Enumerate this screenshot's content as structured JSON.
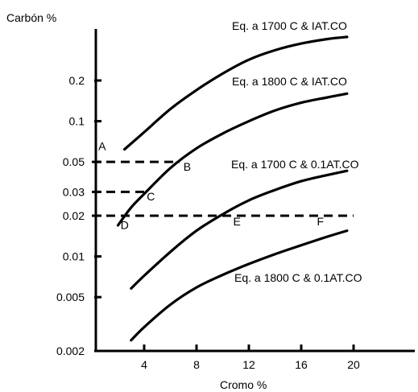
{
  "chart_data": {
    "type": "line",
    "xlabel": "Cromo %",
    "ylabel": "Carbón %",
    "x_ticks": [
      4,
      8,
      12,
      16,
      20
    ],
    "x_tick_labels": [
      "4",
      "8",
      "12",
      "16",
      "20"
    ],
    "y_scale": "log",
    "y_ticks": [
      0.002,
      0.005,
      0.01,
      0.02,
      0.03,
      0.05,
      0.1,
      0.2
    ],
    "y_tick_labels": [
      "0.002",
      "0.005",
      "0.01",
      "0.02",
      "0.03",
      "0.05",
      "0.1",
      "0.2"
    ],
    "xlim": [
      0,
      23
    ],
    "ylim": [
      0.002,
      0.5
    ],
    "series": [
      {
        "name": "Eq. a 1700 C & IAT.CO",
        "x": [
          2.5,
          4,
          6,
          8,
          10,
          12,
          14,
          16,
          18,
          19.5
        ],
        "y": [
          0.062,
          0.083,
          0.123,
          0.17,
          0.225,
          0.285,
          0.335,
          0.375,
          0.405,
          0.42
        ]
      },
      {
        "name": "Eq. a 1800 C & IAT.CO",
        "x": [
          2,
          3,
          4,
          6,
          8,
          10,
          12,
          14,
          16,
          18,
          19.5
        ],
        "y": [
          0.017,
          0.023,
          0.029,
          0.045,
          0.063,
          0.081,
          0.1,
          0.12,
          0.137,
          0.15,
          0.16
        ]
      },
      {
        "name": "Eq. a 1700 C & 0.1AT.CO",
        "x": [
          3,
          4,
          6,
          8,
          10,
          12,
          14,
          16,
          18,
          19.5
        ],
        "y": [
          0.0058,
          0.0072,
          0.0108,
          0.0155,
          0.0205,
          0.026,
          0.031,
          0.036,
          0.04,
          0.043
        ]
      },
      {
        "name": "Eq. a 1800 C & 0.1AT.CO",
        "x": [
          3,
          4,
          6,
          8,
          10,
          12,
          14,
          16,
          18,
          19.5
        ],
        "y": [
          0.0024,
          0.003,
          0.0044,
          0.0059,
          0.0073,
          0.0088,
          0.0104,
          0.0121,
          0.014,
          0.0155
        ]
      }
    ],
    "reference_lines": [
      {
        "y": 0.05,
        "x_from": 0,
        "x_to": 6.7
      },
      {
        "y": 0.03,
        "x_from": 0,
        "x_to": 4
      },
      {
        "y": 0.02,
        "x_from": 0,
        "x_to": 20
      }
    ],
    "points": [
      {
        "label": "A",
        "x": 0.5,
        "y": 0.061
      },
      {
        "label": "B",
        "x": 7,
        "y": 0.043
      },
      {
        "label": "C",
        "x": 4.2,
        "y": 0.026
      },
      {
        "label": "D",
        "x": 2.2,
        "y": 0.016
      },
      {
        "label": "E",
        "x": 10.8,
        "y": 0.017
      },
      {
        "label": "F",
        "x": 17.2,
        "y": 0.017
      }
    ]
  }
}
